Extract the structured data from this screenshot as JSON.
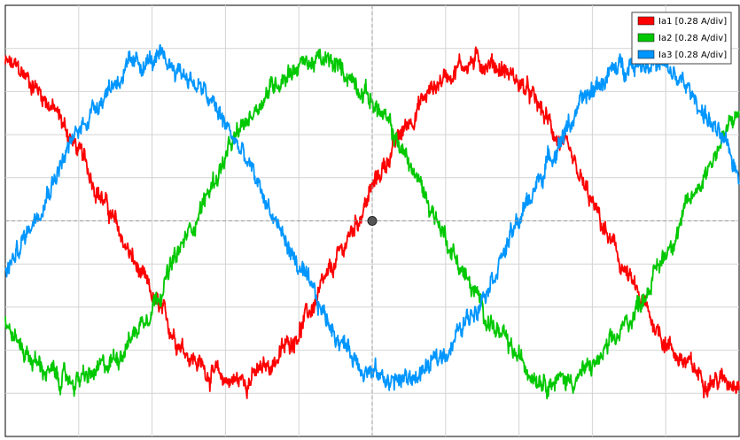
{
  "chart_data": {
    "type": "line",
    "title": "",
    "xlabel": "",
    "ylabel": "",
    "grid": true,
    "legend_position": "top-right",
    "x_divisions": 10,
    "y_divisions": 10,
    "xlim": [
      0,
      10
    ],
    "ylim": [
      -5,
      5
    ],
    "series": [
      {
        "name": "Ia1 [0.28 A/div]",
        "color": "#ff0000",
        "amplitude_div": 3.7,
        "period_div": 6.63,
        "phase_deg": 100,
        "noise_div": 0.25
      },
      {
        "name": "Ia2 [0.28 A/div]",
        "color": "#00c800",
        "amplitude_div": 3.7,
        "period_div": 6.63,
        "phase_deg": 220,
        "noise_div": 0.25
      },
      {
        "name": "Ia3 [0.28 A/div]",
        "color": "#0096ff",
        "amplitude_div": 3.7,
        "period_div": 6.63,
        "phase_deg": -20,
        "noise_div": 0.25
      }
    ],
    "cursor": {
      "x_div": 5,
      "y_div": 0
    }
  },
  "legend": {
    "items": [
      {
        "label": "Ia1 [0.28 A/div]",
        "color": "#ff0000"
      },
      {
        "label": "Ia2 [0.28 A/div]",
        "color": "#00c800"
      },
      {
        "label": "Ia3 [0.28 A/div]",
        "color": "#0096ff"
      }
    ]
  }
}
